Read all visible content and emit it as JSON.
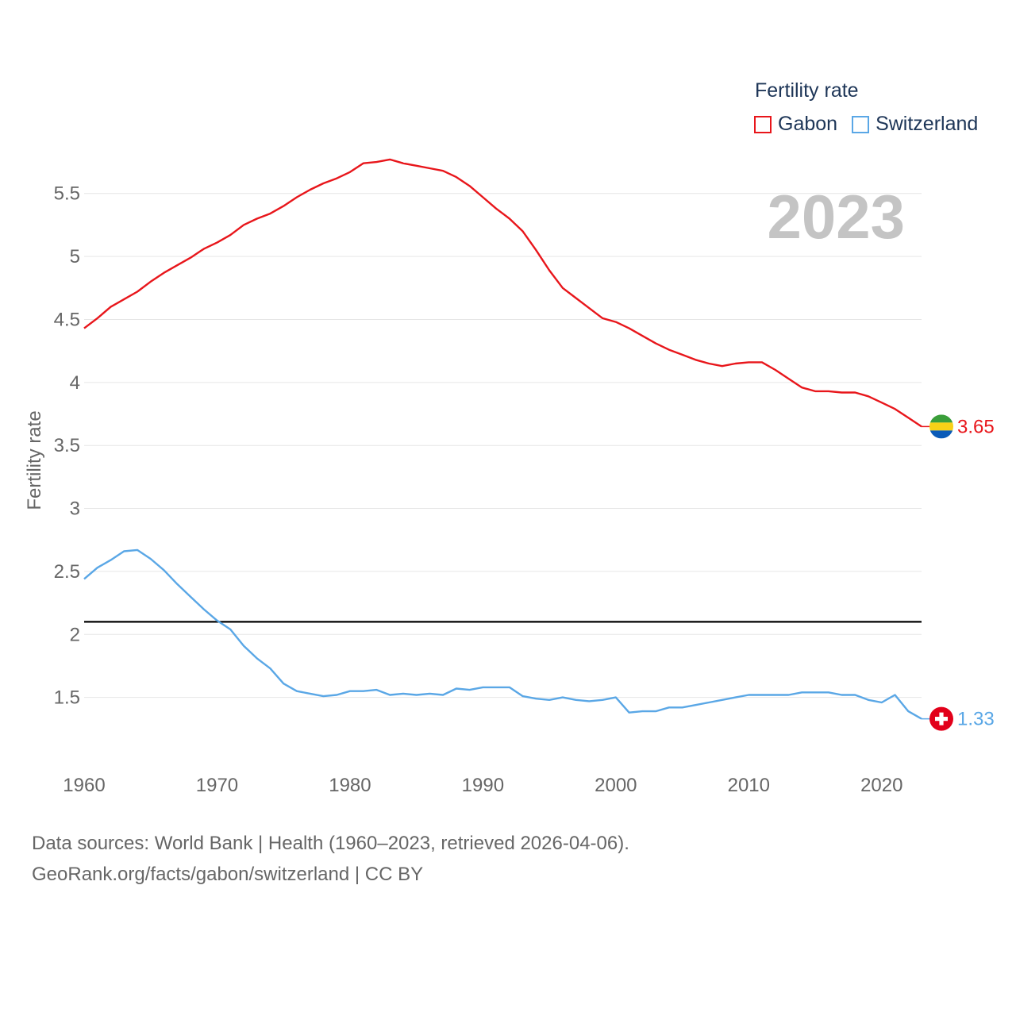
{
  "legend": {
    "title": "Fertility rate",
    "items": [
      {
        "name": "Gabon",
        "color": "#e8161b"
      },
      {
        "name": "Switzerland",
        "color": "#5aa7e6"
      }
    ]
  },
  "year_label": "2023",
  "source": {
    "line1": "Data sources: World Bank | Health (1960–2023, retrieved 2026-04-06).",
    "line2": "GeoRank.org/facts/gabon/switzerland | CC BY"
  },
  "chart_data": {
    "type": "line",
    "title": "",
    "xlabel": "",
    "ylabel": "Fertility rate",
    "xlim": [
      1960,
      2023
    ],
    "ylim": [
      1.0,
      5.7
    ],
    "x_ticks": [
      1960,
      1970,
      1980,
      1990,
      2000,
      2010,
      2020
    ],
    "y_ticks": [
      1.5,
      2,
      2.5,
      3,
      3.5,
      4,
      4.5,
      5,
      5.5
    ],
    "y_tick_labels": [
      "1.5",
      "2",
      "2.5",
      "3",
      "3.5",
      "4",
      "4.5",
      "5",
      "5.5"
    ],
    "reference_line": {
      "y": 2.1,
      "color": "#000000"
    },
    "x": [
      1960,
      1961,
      1962,
      1963,
      1964,
      1965,
      1966,
      1967,
      1968,
      1969,
      1970,
      1971,
      1972,
      1973,
      1974,
      1975,
      1976,
      1977,
      1978,
      1979,
      1980,
      1981,
      1982,
      1983,
      1984,
      1985,
      1986,
      1987,
      1988,
      1989,
      1990,
      1991,
      1992,
      1993,
      1994,
      1995,
      1996,
      1997,
      1998,
      1999,
      2000,
      2001,
      2002,
      2003,
      2004,
      2005,
      2006,
      2007,
      2008,
      2009,
      2010,
      2011,
      2012,
      2013,
      2014,
      2015,
      2016,
      2017,
      2018,
      2019,
      2020,
      2021,
      2022,
      2023
    ],
    "series": [
      {
        "name": "Gabon",
        "color": "#e8161b",
        "end_label": "3.65",
        "flag": "gabon",
        "values": [
          4.43,
          4.51,
          4.6,
          4.66,
          4.72,
          4.8,
          4.87,
          4.93,
          4.99,
          5.06,
          5.11,
          5.17,
          5.25,
          5.3,
          5.34,
          5.4,
          5.47,
          5.53,
          5.58,
          5.62,
          5.67,
          5.74,
          5.75,
          5.77,
          5.74,
          5.72,
          5.7,
          5.68,
          5.63,
          5.56,
          5.47,
          5.38,
          5.3,
          5.2,
          5.05,
          4.89,
          4.75,
          4.67,
          4.59,
          4.51,
          4.48,
          4.43,
          4.37,
          4.31,
          4.26,
          4.22,
          4.18,
          4.15,
          4.13,
          4.15,
          4.16,
          4.16,
          4.1,
          4.03,
          3.96,
          3.93,
          3.93,
          3.92,
          3.92,
          3.89,
          3.84,
          3.79,
          3.72,
          3.65
        ]
      },
      {
        "name": "Switzerland",
        "color": "#5aa7e6",
        "end_label": "1.33",
        "flag": "switzerland",
        "values": [
          2.44,
          2.53,
          2.59,
          2.66,
          2.67,
          2.6,
          2.51,
          2.4,
          2.3,
          2.2,
          2.11,
          2.04,
          1.91,
          1.81,
          1.73,
          1.61,
          1.55,
          1.53,
          1.51,
          1.52,
          1.55,
          1.55,
          1.56,
          1.52,
          1.53,
          1.52,
          1.53,
          1.52,
          1.57,
          1.56,
          1.58,
          1.58,
          1.58,
          1.51,
          1.49,
          1.48,
          1.5,
          1.48,
          1.47,
          1.48,
          1.5,
          1.38,
          1.39,
          1.39,
          1.42,
          1.42,
          1.44,
          1.46,
          1.48,
          1.5,
          1.52,
          1.52,
          1.52,
          1.52,
          1.54,
          1.54,
          1.54,
          1.52,
          1.52,
          1.48,
          1.46,
          1.52,
          1.39,
          1.33
        ]
      }
    ]
  }
}
